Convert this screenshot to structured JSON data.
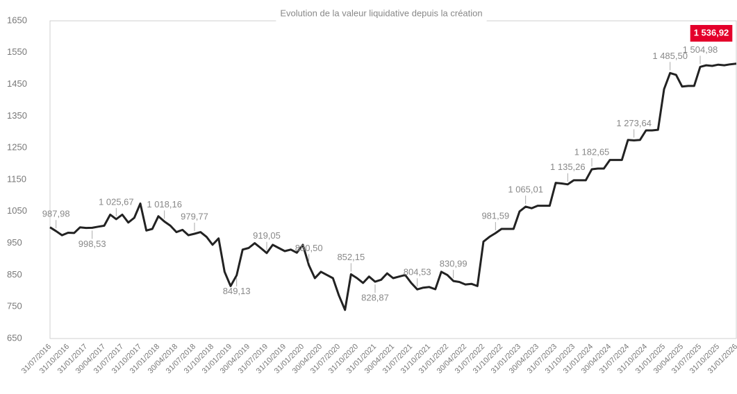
{
  "chart_data": {
    "type": "line",
    "title": "Evolution de la valeur liquidative depuis la création",
    "categories": [
      "31/07/2016",
      null,
      null,
      "31/10/2016",
      null,
      null,
      "31/01/2017",
      null,
      null,
      "30/04/2017",
      null,
      null,
      "31/07/2017",
      null,
      null,
      "31/10/2017",
      null,
      null,
      "31/01/2018",
      null,
      null,
      "30/04/2018",
      null,
      null,
      "31/07/2018",
      null,
      null,
      "31/10/2018",
      null,
      null,
      "31/01/2019",
      null,
      null,
      "30/04/2019",
      null,
      null,
      "31/07/2019",
      null,
      null,
      "31/10/2019",
      null,
      null,
      "31/01/2020",
      null,
      null,
      "30/04/2020",
      null,
      null,
      "31/07/2020",
      null,
      null,
      "31/10/2020",
      null,
      null,
      "31/01/2021",
      null,
      null,
      "30/04/2021",
      null,
      null,
      "31/07/2021",
      null,
      null,
      "31/10/2021",
      null,
      null,
      "31/01/2022",
      null,
      null,
      "30/04/2022",
      null,
      null,
      "31/07/2022",
      null,
      null,
      "31/10/2022",
      null,
      null,
      "31/01/2023",
      null,
      null,
      "30/04/2023",
      null,
      null,
      "31/07/2023",
      null,
      null,
      "31/10/2023",
      null,
      null,
      "31/01/2024",
      null,
      null,
      "30/04/2024",
      null,
      null,
      "31/07/2024",
      null,
      null,
      "31/10/2024",
      null,
      null,
      "31/01/2025",
      null,
      null,
      "30/04/2025",
      null,
      null,
      "31/07/2025",
      null,
      null,
      "31/10/2025",
      null,
      null,
      "31/01/2026"
    ],
    "series": [
      {
        "color": "#222222",
        "values": [
          1000,
          987.98,
          975,
          983,
          982,
          1000,
          998,
          998.53,
          1002,
          1005,
          1040,
          1025.67,
          1040,
          1015,
          1030,
          1075,
          990,
          995,
          1035,
          1018.16,
          1005,
          985,
          992,
          975,
          979.77,
          985,
          970,
          945,
          965,
          860,
          815,
          849.13,
          930,
          935,
          950,
          935,
          919.05,
          945,
          935,
          925,
          930,
          920,
          945,
          880.5,
          840,
          860,
          850,
          840,
          785,
          740,
          852.15,
          840,
          825,
          845,
          828.87,
          835,
          855,
          840,
          845,
          850,
          825,
          804.53,
          810,
          812,
          805,
          860,
          850,
          830.99,
          828,
          820,
          822,
          815,
          955,
          970,
          981.59,
          995,
          995,
          995,
          1050,
          1065.01,
          1060,
          1068,
          1068,
          1068,
          1140,
          1138,
          1135.26,
          1148,
          1148,
          1148,
          1182.65,
          1185,
          1185,
          1212,
          1212,
          1212,
          1275,
          1273.64,
          1275,
          1305,
          1305,
          1307,
          1435,
          1485.5,
          1480,
          1443,
          1445,
          1445,
          1504.98,
          1510,
          1508,
          1512,
          1510,
          1513,
          1515
        ],
        "value_labels": [
          null,
          "987,98",
          null,
          null,
          null,
          null,
          null,
          "998,53",
          null,
          null,
          null,
          "1 025,67",
          null,
          null,
          null,
          null,
          null,
          null,
          null,
          "1 018,16",
          null,
          null,
          null,
          null,
          "979,77",
          null,
          null,
          null,
          null,
          null,
          null,
          "849,13",
          null,
          null,
          null,
          null,
          "919,05",
          null,
          null,
          null,
          null,
          null,
          null,
          "880,50",
          null,
          null,
          null,
          null,
          null,
          null,
          "852,15",
          null,
          null,
          null,
          "828,87",
          null,
          null,
          null,
          null,
          null,
          null,
          "804,53",
          null,
          null,
          null,
          null,
          null,
          "830,99",
          null,
          null,
          null,
          null,
          null,
          null,
          "981,59",
          null,
          null,
          null,
          null,
          "1 065,01",
          null,
          null,
          null,
          null,
          null,
          null,
          "1 135,26",
          null,
          null,
          null,
          "1 182,65",
          null,
          null,
          null,
          null,
          null,
          null,
          "1 273,64",
          null,
          null,
          null,
          null,
          null,
          "1 485,50",
          null,
          null,
          null,
          null,
          "1 504,98",
          null,
          null,
          null,
          null,
          null,
          null
        ]
      }
    ],
    "latest_value": {
      "value": 1536.92,
      "label": "1 536,92",
      "color": "#e4002b"
    },
    "ylim": [
      650,
      1650
    ],
    "yticks": [
      650,
      750,
      850,
      950,
      1050,
      1150,
      1250,
      1350,
      1450,
      1550,
      1650
    ],
    "grid": false
  }
}
